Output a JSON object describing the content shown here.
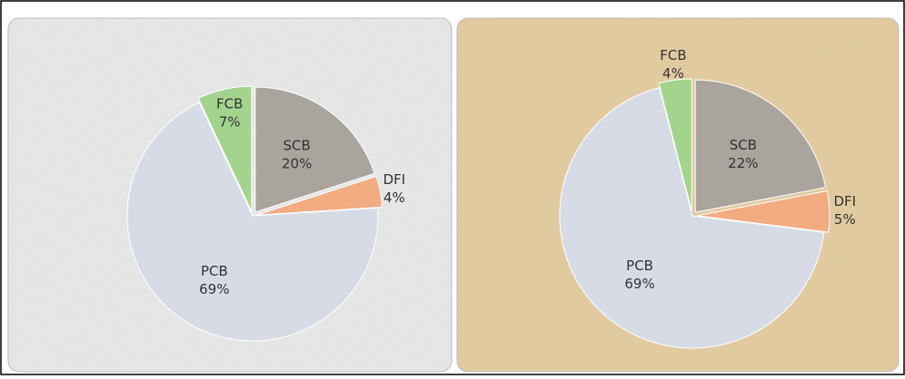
{
  "chart_data": [
    {
      "type": "pie",
      "categories": [
        "SCB",
        "DFI",
        "PCB",
        "FCB"
      ],
      "values": [
        20,
        4,
        69,
        7
      ],
      "value_labels": [
        "20%",
        "4%",
        "69%",
        "7%"
      ],
      "colors": [
        "#aaa49e",
        "#f3ab82",
        "#d6dbe6",
        "#a3d48e"
      ]
    },
    {
      "type": "pie",
      "categories": [
        "SCB",
        "DFI",
        "PCB",
        "FCB"
      ],
      "values": [
        22,
        5,
        69,
        4
      ],
      "value_labels": [
        "22%",
        "5%",
        "69%",
        "4%"
      ],
      "colors": [
        "#aaa49e",
        "#f3ab82",
        "#d6dbe6",
        "#a3d48e"
      ]
    }
  ]
}
